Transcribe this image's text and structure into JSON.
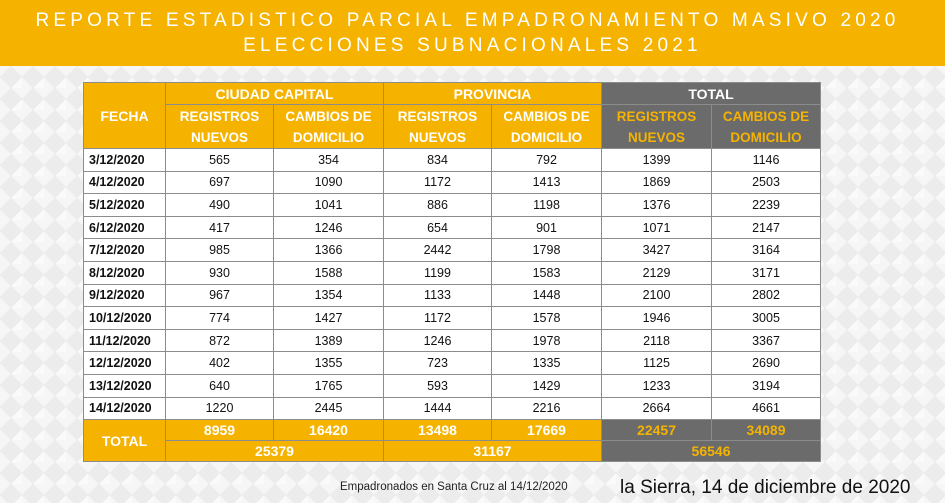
{
  "banner": {
    "line1": "REPORTE ESTADISTICO PARCIAL EMPADRONAMIENTO MASIVO 2020",
    "line2": "ELECCIONES SUBNACIONALES 2021"
  },
  "table": {
    "fecha_header": "FECHA",
    "groups": [
      "CIUDAD CAPITAL",
      "PROVINCIA",
      "TOTAL"
    ],
    "subheaders": {
      "registros": [
        "REGISTROS",
        "NUEVOS"
      ],
      "cambios": [
        "CAMBIOS DE",
        "DOMICILIO"
      ]
    },
    "rows": [
      {
        "fecha": "3/12/2020",
        "cc_reg": "565",
        "cc_cam": "354",
        "pr_reg": "834",
        "pr_cam": "792",
        "t_reg": "1399",
        "t_cam": "1146"
      },
      {
        "fecha": "4/12/2020",
        "cc_reg": "697",
        "cc_cam": "1090",
        "pr_reg": "1172",
        "pr_cam": "1413",
        "t_reg": "1869",
        "t_cam": "2503"
      },
      {
        "fecha": "5/12/2020",
        "cc_reg": "490",
        "cc_cam": "1041",
        "pr_reg": "886",
        "pr_cam": "1198",
        "t_reg": "1376",
        "t_cam": "2239"
      },
      {
        "fecha": "6/12/2020",
        "cc_reg": "417",
        "cc_cam": "1246",
        "pr_reg": "654",
        "pr_cam": "901",
        "t_reg": "1071",
        "t_cam": "2147"
      },
      {
        "fecha": "7/12/2020",
        "cc_reg": "985",
        "cc_cam": "1366",
        "pr_reg": "2442",
        "pr_cam": "1798",
        "t_reg": "3427",
        "t_cam": "3164"
      },
      {
        "fecha": "8/12/2020",
        "cc_reg": "930",
        "cc_cam": "1588",
        "pr_reg": "1199",
        "pr_cam": "1583",
        "t_reg": "2129",
        "t_cam": "3171"
      },
      {
        "fecha": "9/12/2020",
        "cc_reg": "967",
        "cc_cam": "1354",
        "pr_reg": "1133",
        "pr_cam": "1448",
        "t_reg": "2100",
        "t_cam": "2802"
      },
      {
        "fecha": "10/12/2020",
        "cc_reg": "774",
        "cc_cam": "1427",
        "pr_reg": "1172",
        "pr_cam": "1578",
        "t_reg": "1946",
        "t_cam": "3005"
      },
      {
        "fecha": "11/12/2020",
        "cc_reg": "872",
        "cc_cam": "1389",
        "pr_reg": "1246",
        "pr_cam": "1978",
        "t_reg": "2118",
        "t_cam": "3367"
      },
      {
        "fecha": "12/12/2020",
        "cc_reg": "402",
        "cc_cam": "1355",
        "pr_reg": "723",
        "pr_cam": "1335",
        "t_reg": "1125",
        "t_cam": "2690"
      },
      {
        "fecha": "13/12/2020",
        "cc_reg": "640",
        "cc_cam": "1765",
        "pr_reg": "593",
        "pr_cam": "1429",
        "t_reg": "1233",
        "t_cam": "3194"
      },
      {
        "fecha": "14/12/2020",
        "cc_reg": "1220",
        "cc_cam": "2445",
        "pr_reg": "1444",
        "pr_cam": "2216",
        "t_reg": "2664",
        "t_cam": "4661"
      }
    ],
    "totals": {
      "label": "TOTAL",
      "cc_reg": "8959",
      "cc_cam": "16420",
      "pr_reg": "13498",
      "pr_cam": "17669",
      "t_reg": "22457",
      "t_cam": "34089",
      "cc_sum": "25379",
      "pr_sum": "31167",
      "t_sum": "56546"
    }
  },
  "footnote": "Empadronados en Santa Cruz al 14/12/2020",
  "place_date": "la Sierra, 14 de diciembre de 2020"
}
